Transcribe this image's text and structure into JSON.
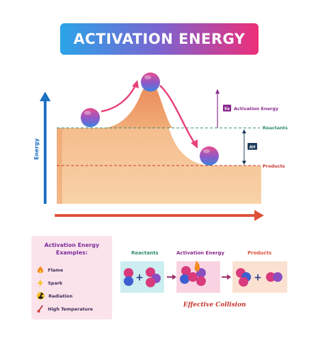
{
  "title": "ACTIVATION ENERGY",
  "graph": {
    "y_axis_label": "Energy",
    "ea_symbol": "Ea",
    "activation_energy_label": "Activation Energy",
    "reactants_label": "Reactants",
    "delta_h_label": "ΔH",
    "products_label": "Products"
  },
  "examples": {
    "title": "Activation Energy Examples:",
    "items": [
      {
        "label": "Flame",
        "icon": "flame-icon"
      },
      {
        "label": "Spark",
        "icon": "spark-icon"
      },
      {
        "label": "Radiation",
        "icon": "radiation-icon"
      },
      {
        "label": "High Temperature",
        "icon": "thermometer-icon"
      }
    ]
  },
  "collision": {
    "reactants_label": "Reactants",
    "activation_label": "Activation Energy",
    "products_label": "Products",
    "caption": "Effective Collision"
  },
  "colors": {
    "banner_start": "#2aa4e8",
    "banner_end": "#ee2e79",
    "axis_blue": "#1d6fc0",
    "axis_red": "#e0513a",
    "reactants_green": "#2e8b6b",
    "products_red": "#c8362d",
    "activation_purple": "#8a2c8e",
    "energy_fill": "#f6c28f"
  }
}
